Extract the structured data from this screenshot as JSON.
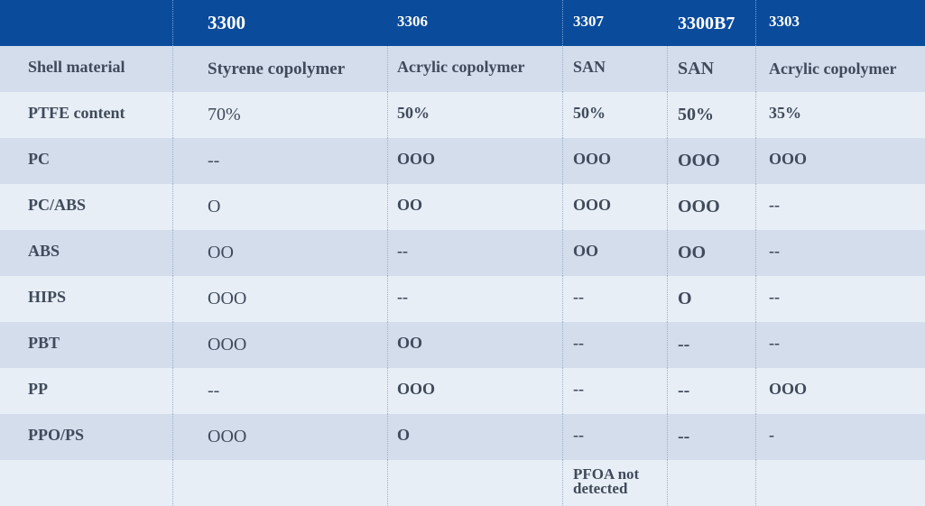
{
  "table": {
    "columns": [
      "",
      "3300",
      "3306",
      "3307",
      "3300B7",
      "3303"
    ],
    "rows": [
      {
        "label": "Shell material",
        "values": [
          "Styrene copolymer",
          "Acrylic copolymer",
          "SAN",
          "SAN",
          "Acrylic copolymer"
        ]
      },
      {
        "label": "PTFE content",
        "values": [
          "70%",
          "50%",
          "50%",
          "50%",
          "35%"
        ]
      },
      {
        "label": "PC",
        "values": [
          "--",
          "OOO",
          "OOO",
          "OOO",
          "OOO"
        ]
      },
      {
        "label": "PC/ABS",
        "values": [
          "O",
          "OO",
          "OOO",
          "OOO",
          "--"
        ]
      },
      {
        "label": "ABS",
        "values": [
          "OO",
          "--",
          "OO",
          "OO",
          "--"
        ]
      },
      {
        "label": "HIPS",
        "values": [
          "OOO",
          "--",
          "--",
          "O",
          "--"
        ]
      },
      {
        "label": "PBT",
        "values": [
          "OOO",
          "OO",
          "--",
          "--",
          "--"
        ]
      },
      {
        "label": "PP",
        "values": [
          "--",
          "OOO",
          "--",
          "--",
          "OOO"
        ]
      },
      {
        "label": "PPO/PS",
        "values": [
          "OOO",
          "O",
          "--",
          "--",
          "-"
        ]
      },
      {
        "label": "",
        "values": [
          "",
          "",
          "PFOA not detected",
          "",
          ""
        ]
      }
    ]
  },
  "colors": {
    "header_bg": "#0a4b9b",
    "row_alt_bg": "#d3ddec",
    "row_plain_bg": "#e8eef6",
    "text": "#3f4a5a"
  }
}
